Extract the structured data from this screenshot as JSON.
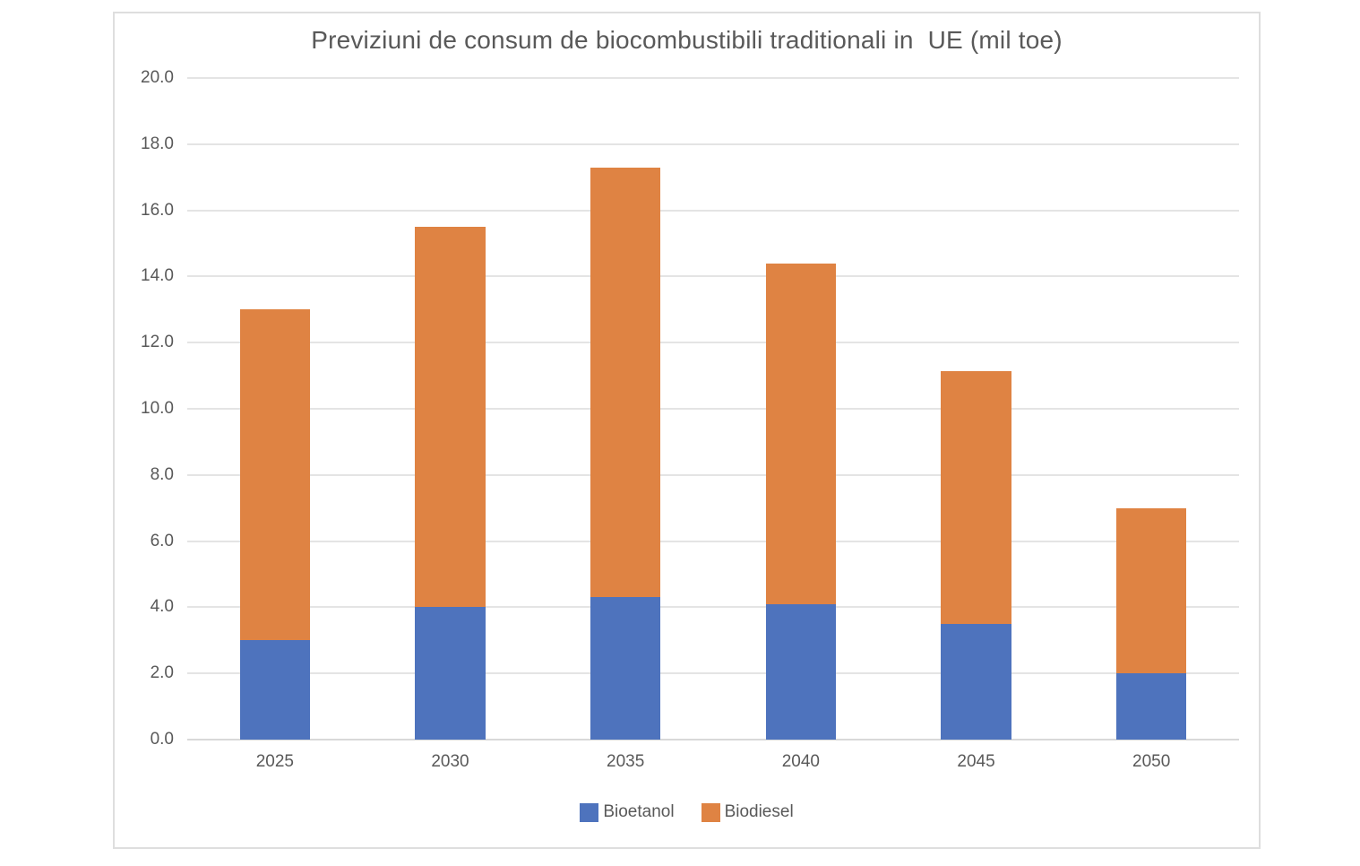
{
  "chart_data": {
    "type": "bar",
    "stacked": true,
    "title": "Previziuni de consum de biocombustibili traditionali in  UE (mil toe)",
    "categories": [
      "2025",
      "2030",
      "2035",
      "2040",
      "2045",
      "2050"
    ],
    "series": [
      {
        "name": "Bioetanol",
        "color": "#4E73BD",
        "values": [
          3.0,
          4.0,
          4.3,
          4.1,
          3.5,
          2.0
        ]
      },
      {
        "name": "Biodiesel",
        "color": "#DF8343",
        "values": [
          10.0,
          11.5,
          13.0,
          10.3,
          7.65,
          5.0
        ]
      }
    ],
    "stack_totals": [
      13.0,
      15.5,
      17.3,
      14.4,
      11.15,
      7.0
    ],
    "xlabel": "",
    "ylabel": "",
    "ylim": [
      0,
      20
    ],
    "ytick_step": 2,
    "ytick_labels": [
      "0.0",
      "2.0",
      "4.0",
      "6.0",
      "8.0",
      "10.0",
      "12.0",
      "14.0",
      "16.0",
      "18.0",
      "20.0"
    ],
    "grid": true,
    "legend_position": "bottom",
    "colors": {
      "text": "#595959",
      "gridline": "#E4E4E4",
      "axis_line": "#D9D9D9",
      "border": "#DEDEDE",
      "background": "#FFFFFF"
    }
  }
}
